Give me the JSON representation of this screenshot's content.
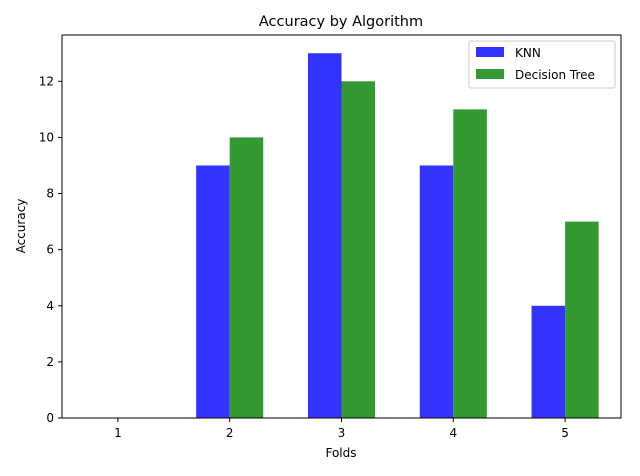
{
  "chart_data": {
    "type": "bar",
    "title": "Accuracy by Algorithm",
    "xlabel": "Folds",
    "ylabel": "Accuracy",
    "categories": [
      "1",
      "2",
      "3",
      "4",
      "5"
    ],
    "series": [
      {
        "name": "KNN",
        "values": [
          0,
          9,
          13,
          9,
          4
        ],
        "color": "#3333ff"
      },
      {
        "name": "Decision Tree",
        "values": [
          0,
          10,
          12,
          11,
          7
        ],
        "color": "#339933"
      }
    ],
    "ylim": [
      0,
      13.65
    ],
    "yticks": [
      0,
      2,
      4,
      6,
      8,
      10,
      12
    ],
    "grid": false,
    "legend_position": "top-right"
  }
}
